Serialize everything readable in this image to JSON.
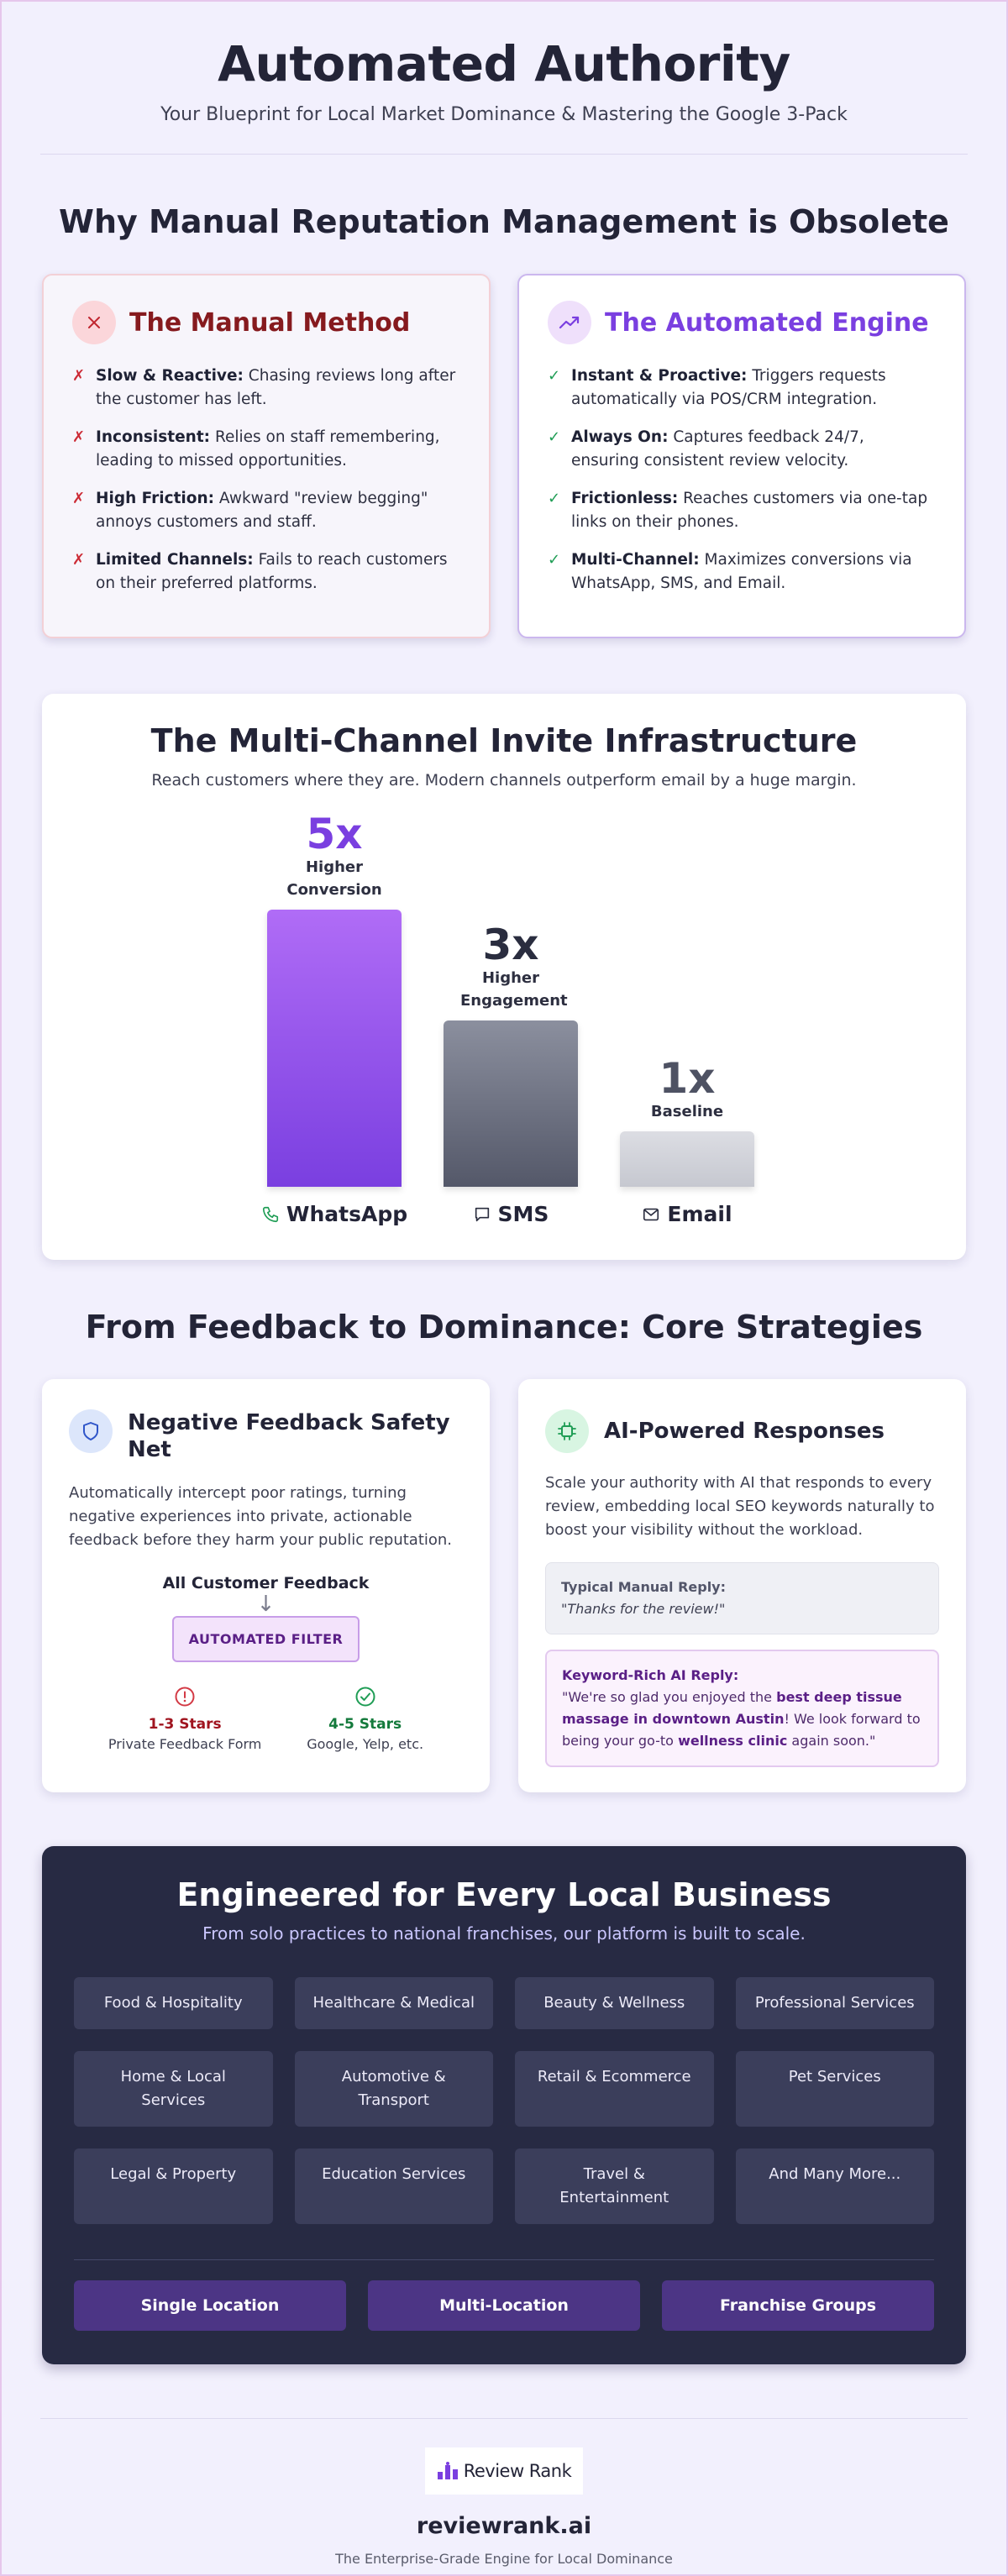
{
  "hero": {
    "title": "Automated Authority",
    "subtitle": "Your Blueprint for Local Market Dominance & Mastering the Google 3-Pack"
  },
  "comparison": {
    "title": "Why Manual Reputation Management is Obsolete",
    "manual": {
      "heading": "The Manual Method",
      "icon": "close-icon",
      "items": [
        {
          "bold": "Slow & Reactive:",
          "text": " Chasing reviews long after the customer has left."
        },
        {
          "bold": "Inconsistent:",
          "text": " Relies on staff remembering, leading to missed opportunities."
        },
        {
          "bold": "High Friction:",
          "text": " Awkward \"review begging\" annoys customers and staff."
        },
        {
          "bold": "Limited Channels:",
          "text": " Fails to reach customers on their preferred platforms."
        }
      ]
    },
    "automated": {
      "heading": "The Automated Engine",
      "icon": "trending-up-icon",
      "items": [
        {
          "bold": "Instant & Proactive:",
          "text": " Triggers requests automatically via POS/CRM integration."
        },
        {
          "bold": "Always On:",
          "text": " Captures feedback 24/7, ensuring consistent review velocity."
        },
        {
          "bold": "Frictionless:",
          "text": " Reaches customers via one-tap links on their phones."
        },
        {
          "bold": "Multi-Channel:",
          "text": " Maximizes conversions via WhatsApp, SMS, and Email."
        }
      ]
    }
  },
  "chart_data": {
    "type": "bar",
    "title": "The Multi-Channel Invite Infrastructure",
    "subtitle": "Reach customers where they are. Modern channels outperform email by a huge margin.",
    "categories": [
      "WhatsApp",
      "SMS",
      "Email"
    ],
    "values": [
      5,
      3,
      1
    ],
    "multiplier_labels": [
      "5x",
      "3x",
      "1x"
    ],
    "descriptions": [
      "Higher Conversion",
      "Higher Engagement",
      "Baseline"
    ],
    "icons": [
      "phone-icon",
      "chat-icon",
      "mail-icon"
    ],
    "colors": [
      "#7a3fe0",
      "#5a5e70",
      "#6b6f80"
    ]
  },
  "strategies": {
    "title": "From Feedback to Dominance: Core Strategies",
    "safety_net": {
      "heading": "Negative Feedback Safety Net",
      "icon": "shield-icon",
      "body": "Automatically intercept poor ratings, turning negative experiences into private, actionable feedback before they harm your public reputation.",
      "flow_top": "All Customer Feedback",
      "filter_label": "AUTOMATED FILTER",
      "low": {
        "stars": "1-3 Stars",
        "desc": "Private Feedback Form"
      },
      "high": {
        "stars": "4-5 Stars",
        "desc": "Google, Yelp, etc."
      }
    },
    "ai": {
      "heading": "AI-Powered Responses",
      "icon": "chip-icon",
      "body": "Scale your authority with AI that responds to every review, embedding local SEO keywords naturally to boost your visibility without the workload.",
      "manual_title": "Typical Manual Reply:",
      "manual_quote": "\"Thanks for the review!\"",
      "ai_title": "Keyword-Rich AI Reply:",
      "ai_part1": "\"We're so glad you enjoyed the ",
      "ai_kw1": "best deep tissue massage in downtown Austin",
      "ai_part2": "! We look forward to being your go-to ",
      "ai_kw2": "wellness clinic",
      "ai_part3": " again soon.\""
    }
  },
  "industries": {
    "title": "Engineered for Every Local Business",
    "subtitle": "From solo practices to national franchises, our platform is built to scale.",
    "tiles": [
      "Food & Hospitality",
      "Healthcare & Medical",
      "Beauty & Wellness",
      "Professional Services",
      "Home & Local Services",
      "Automotive & Transport",
      "Retail & Ecommerce",
      "Pet Services",
      "Legal & Property",
      "Education Services",
      "Travel & Entertainment",
      "And Many More..."
    ],
    "scales": [
      "Single Location",
      "Multi-Location",
      "Franchise Groups"
    ]
  },
  "footer": {
    "logo_text": "Review Rank",
    "domain": "reviewrank.ai",
    "tagline": "The Enterprise-Grade Engine for Local Dominance"
  }
}
